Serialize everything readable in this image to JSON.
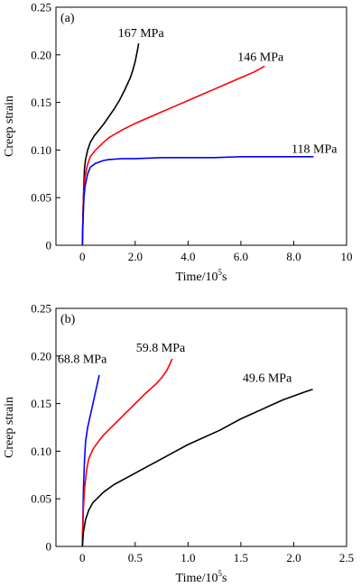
{
  "chart_data": [
    {
      "type": "line",
      "panel_label": "(a)",
      "xlabel": "Time/10",
      "xlabel_sup": "5",
      "xlabel_suffix": "s",
      "ylabel": "Creep strain",
      "xlim": [
        -1,
        10
      ],
      "ylim": [
        0,
        0.25
      ],
      "xticks": [
        0,
        2,
        4,
        6,
        8,
        10
      ],
      "xtick_labels": [
        "0",
        "2.0",
        "4.0",
        "6.0",
        "8.0",
        "10"
      ],
      "yticks": [
        0,
        0.05,
        0.1,
        0.15,
        0.2,
        0.25
      ],
      "ytick_labels": [
        "0",
        "0.05",
        "0.10",
        "0.15",
        "0.20",
        "0.25"
      ],
      "grid": false,
      "series": [
        {
          "name": "167 MPa",
          "color": "#000000",
          "label_at": [
            2.1,
            0.213
          ],
          "points": [
            [
              0,
              0
            ],
            [
              0.02,
              0.03
            ],
            [
              0.05,
              0.06
            ],
            [
              0.08,
              0.08
            ],
            [
              0.12,
              0.09
            ],
            [
              0.2,
              0.1
            ],
            [
              0.3,
              0.108
            ],
            [
              0.45,
              0.115
            ],
            [
              0.6,
              0.12
            ],
            [
              0.8,
              0.127
            ],
            [
              1.0,
              0.135
            ],
            [
              1.2,
              0.143
            ],
            [
              1.4,
              0.152
            ],
            [
              1.6,
              0.163
            ],
            [
              1.8,
              0.175
            ],
            [
              1.9,
              0.183
            ],
            [
              2.0,
              0.193
            ],
            [
              2.05,
              0.2
            ],
            [
              2.1,
              0.207
            ],
            [
              2.13,
              0.212
            ]
          ]
        },
        {
          "name": "146 MPa",
          "color": "#ff0000",
          "label_at": [
            6.9,
            0.19
          ],
          "points": [
            [
              0,
              0
            ],
            [
              0.03,
              0.04
            ],
            [
              0.06,
              0.06
            ],
            [
              0.1,
              0.072
            ],
            [
              0.2,
              0.085
            ],
            [
              0.3,
              0.093
            ],
            [
              0.5,
              0.1
            ],
            [
              0.8,
              0.108
            ],
            [
              1.0,
              0.113
            ],
            [
              1.5,
              0.121
            ],
            [
              2.0,
              0.128
            ],
            [
              2.5,
              0.134
            ],
            [
              3.0,
              0.14
            ],
            [
              3.5,
              0.146
            ],
            [
              4.0,
              0.152
            ],
            [
              4.5,
              0.158
            ],
            [
              5.0,
              0.164
            ],
            [
              5.5,
              0.17
            ],
            [
              6.0,
              0.176
            ],
            [
              6.5,
              0.182
            ],
            [
              6.9,
              0.188
            ]
          ]
        },
        {
          "name": "118 MPa",
          "color": "#0000ff",
          "label_at": [
            8.6,
            0.094
          ],
          "points": [
            [
              0,
              0
            ],
            [
              0.03,
              0.03
            ],
            [
              0.06,
              0.05
            ],
            [
              0.1,
              0.062
            ],
            [
              0.2,
              0.075
            ],
            [
              0.3,
              0.082
            ],
            [
              0.5,
              0.086
            ],
            [
              0.8,
              0.089
            ],
            [
              1.0,
              0.09
            ],
            [
              1.5,
              0.091
            ],
            [
              2.0,
              0.091
            ],
            [
              3.0,
              0.092
            ],
            [
              4.0,
              0.092
            ],
            [
              5.0,
              0.092
            ],
            [
              6.0,
              0.093
            ],
            [
              7.0,
              0.093
            ],
            [
              8.0,
              0.093
            ],
            [
              8.75,
              0.093
            ]
          ]
        }
      ]
    },
    {
      "type": "line",
      "panel_label": "(b)",
      "xlabel": "Time/10",
      "xlabel_sup": "5",
      "xlabel_suffix": "s",
      "ylabel": "Creep strain",
      "xlim": [
        -0.25,
        2.5
      ],
      "ylim": [
        0,
        0.25
      ],
      "xticks": [
        0,
        0.5,
        1.0,
        1.5,
        2.0,
        2.5
      ],
      "xtick_labels": [
        "0",
        "0.5",
        "1.0",
        "1.5",
        "2.0",
        "2.5"
      ],
      "yticks": [
        0,
        0.05,
        0.1,
        0.15,
        0.2,
        0.25
      ],
      "ytick_labels": [
        "0",
        "0.05",
        "0.10",
        "0.15",
        "0.20",
        "0.25"
      ],
      "grid": false,
      "series": [
        {
          "name": "68.8 MPa",
          "color": "#0000ff",
          "label_at": [
            0.15,
            0.185
          ],
          "points": [
            [
              0,
              0
            ],
            [
              0.005,
              0.03
            ],
            [
              0.01,
              0.06
            ],
            [
              0.02,
              0.09
            ],
            [
              0.03,
              0.11
            ],
            [
              0.05,
              0.125
            ],
            [
              0.07,
              0.135
            ],
            [
              0.09,
              0.145
            ],
            [
              0.11,
              0.155
            ],
            [
              0.13,
              0.165
            ],
            [
              0.15,
              0.175
            ],
            [
              0.16,
              0.18
            ]
          ]
        },
        {
          "name": "59.8 MPa",
          "color": "#ff0000",
          "label_at": [
            0.85,
            0.2
          ],
          "points": [
            [
              0,
              0
            ],
            [
              0.01,
              0.04
            ],
            [
              0.02,
              0.06
            ],
            [
              0.04,
              0.08
            ],
            [
              0.06,
              0.092
            ],
            [
              0.1,
              0.102
            ],
            [
              0.15,
              0.11
            ],
            [
              0.2,
              0.117
            ],
            [
              0.3,
              0.128
            ],
            [
              0.4,
              0.139
            ],
            [
              0.5,
              0.15
            ],
            [
              0.6,
              0.161
            ],
            [
              0.7,
              0.171
            ],
            [
              0.75,
              0.177
            ],
            [
              0.8,
              0.185
            ],
            [
              0.83,
              0.192
            ],
            [
              0.85,
              0.197
            ]
          ]
        },
        {
          "name": "49.6 MPa",
          "color": "#000000",
          "label_at": [
            2.2,
            0.167
          ],
          "points": [
            [
              0,
              0
            ],
            [
              0.01,
              0.015
            ],
            [
              0.03,
              0.028
            ],
            [
              0.06,
              0.038
            ],
            [
              0.1,
              0.046
            ],
            [
              0.2,
              0.057
            ],
            [
              0.3,
              0.065
            ],
            [
              0.4,
              0.071
            ],
            [
              0.5,
              0.077
            ],
            [
              0.6,
              0.083
            ],
            [
              0.7,
              0.089
            ],
            [
              0.8,
              0.095
            ],
            [
              0.9,
              0.101
            ],
            [
              1.0,
              0.107
            ],
            [
              1.1,
              0.112
            ],
            [
              1.2,
              0.117
            ],
            [
              1.3,
              0.122
            ],
            [
              1.4,
              0.128
            ],
            [
              1.5,
              0.134
            ],
            [
              1.6,
              0.139
            ],
            [
              1.7,
              0.144
            ],
            [
              1.8,
              0.149
            ],
            [
              1.9,
              0.154
            ],
            [
              2.0,
              0.158
            ],
            [
              2.1,
              0.162
            ],
            [
              2.18,
              0.165
            ]
          ]
        }
      ]
    }
  ]
}
